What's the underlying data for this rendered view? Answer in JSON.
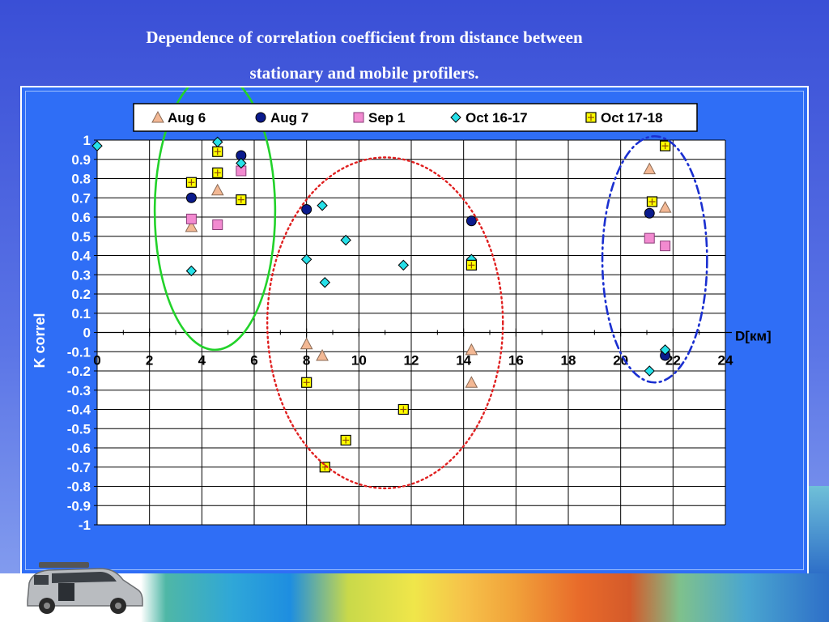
{
  "page": {
    "title_line1": "Dependence of correlation coefficient from distance between",
    "title_line2": "stationary and mobile profilers."
  },
  "chart_data": {
    "type": "scatter",
    "xlabel": "D[км]",
    "ylabel": "K correl",
    "xlim": [
      0,
      24
    ],
    "ylim": [
      -1,
      1
    ],
    "x_ticks": [
      "0",
      "2",
      "4",
      "6",
      "8",
      "10",
      "12",
      "14",
      "16",
      "18",
      "20",
      "22",
      "24"
    ],
    "y_ticks": [
      "1",
      "0.9",
      "0.8",
      "0.7",
      "0.6",
      "0.5",
      "0.4",
      "0.3",
      "0.2",
      "0.1",
      "0",
      "-0.1",
      "-0.2",
      "-0.3",
      "-0.4",
      "-0.5",
      "-0.6",
      "-0.7",
      "-0.8",
      "-0.9",
      "-1"
    ],
    "grid": true,
    "legend_position": "top",
    "colors": {
      "background": "#ffffff",
      "grid": "#000000",
      "green_ellipse": "#22d22a",
      "red_ellipse": "#e02020",
      "blue_ellipse": "#1a2fd0"
    },
    "series": [
      {
        "name": "Aug 6",
        "marker": "triangle",
        "color": "#f3b894",
        "points": [
          [
            3.6,
            0.55
          ],
          [
            4.6,
            0.74
          ],
          [
            8.0,
            -0.06
          ],
          [
            8.6,
            -0.12
          ],
          [
            14.3,
            -0.09
          ],
          [
            14.3,
            -0.26
          ],
          [
            21.1,
            0.85
          ],
          [
            21.7,
            0.65
          ]
        ]
      },
      {
        "name": "Aug 7",
        "marker": "circle",
        "color": "#0a1a8c",
        "points": [
          [
            3.6,
            0.7
          ],
          [
            5.5,
            0.92
          ],
          [
            8.0,
            0.64
          ],
          [
            14.3,
            0.58
          ],
          [
            21.1,
            0.62
          ],
          [
            21.7,
            -0.12
          ]
        ]
      },
      {
        "name": "Sep 1",
        "marker": "square",
        "color": "#f28ad0",
        "points": [
          [
            3.6,
            0.59
          ],
          [
            4.6,
            0.56
          ],
          [
            5.5,
            0.84
          ],
          [
            21.1,
            0.49
          ],
          [
            21.7,
            0.45
          ]
        ]
      },
      {
        "name": "Oct 16-17",
        "marker": "diamond",
        "color": "#27e0e8",
        "points": [
          [
            0.0,
            0.97
          ],
          [
            3.6,
            0.32
          ],
          [
            4.6,
            0.99
          ],
          [
            5.5,
            0.88
          ],
          [
            8.0,
            0.38
          ],
          [
            8.6,
            0.66
          ],
          [
            8.7,
            0.26
          ],
          [
            9.5,
            0.48
          ],
          [
            11.7,
            0.35
          ],
          [
            14.3,
            0.38
          ],
          [
            21.1,
            -0.2
          ],
          [
            21.7,
            -0.09
          ]
        ]
      },
      {
        "name": "Oct 17-18",
        "marker": "plus-square",
        "color": "#ffff00",
        "points": [
          [
            3.6,
            0.78
          ],
          [
            4.6,
            0.94
          ],
          [
            4.6,
            0.83
          ],
          [
            5.5,
            0.69
          ],
          [
            8.0,
            -0.26
          ],
          [
            8.7,
            -0.7
          ],
          [
            9.5,
            -0.56
          ],
          [
            11.7,
            -0.4
          ],
          [
            14.3,
            0.35
          ],
          [
            21.2,
            0.68
          ],
          [
            21.7,
            0.97
          ]
        ]
      }
    ],
    "ellipses": [
      {
        "color": "green",
        "style": "solid",
        "cx": 4.5,
        "cy": 0.63,
        "rx": 2.3,
        "ry": 0.72
      },
      {
        "color": "red",
        "style": "dotted",
        "cx": 11.0,
        "cy": 0.05,
        "rx": 4.5,
        "ry": 0.86
      },
      {
        "color": "blue",
        "style": "dashdot",
        "cx": 21.3,
        "cy": 0.38,
        "rx": 2.0,
        "ry": 0.64
      }
    ]
  }
}
